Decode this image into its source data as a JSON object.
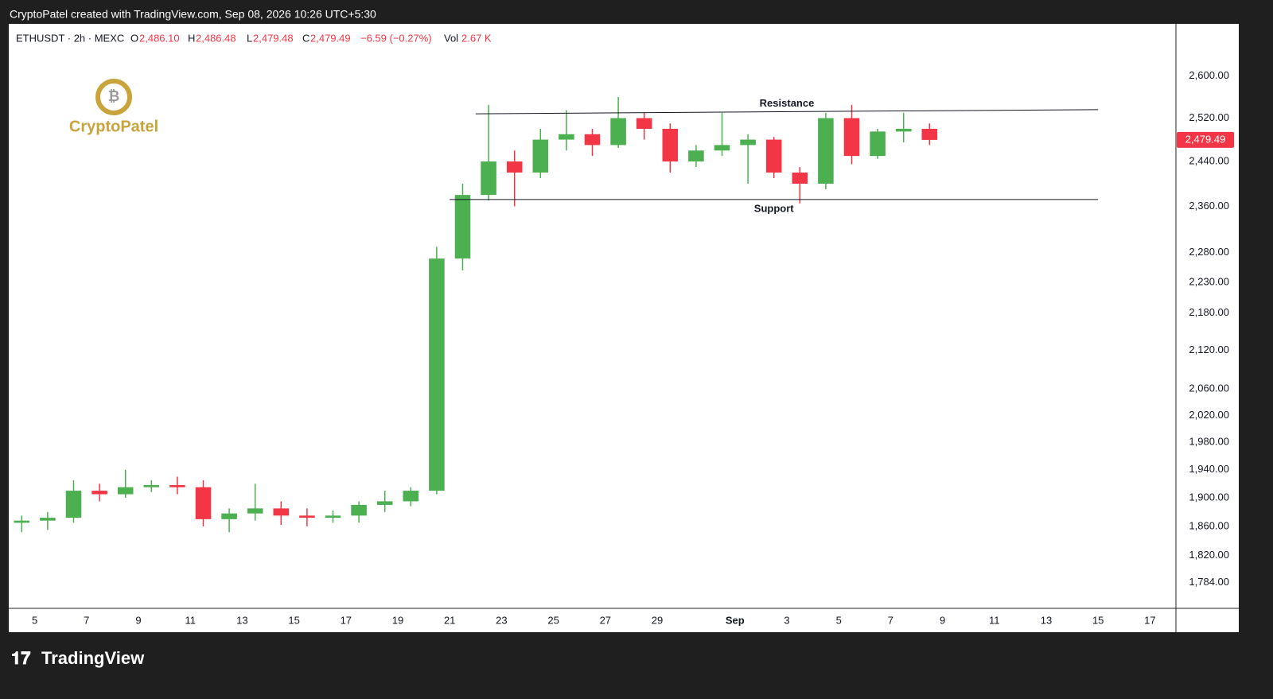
{
  "top_bar": "CryptoPatel created with TradingView.com, Sep 08, 2026 10:26 UTC+5:30",
  "logo_text": "CryptoPatel",
  "footer": "TradingView",
  "chart_data": {
    "type": "candlestick",
    "header": {
      "symbol": "ETHUSDT · 2h · MEXC",
      "o_label": "O",
      "open": "2,486.10",
      "h_label": "H",
      "high": "2,486.48",
      "l_label": "L",
      "low": "2,479.48",
      "c_label": "C",
      "close": "2,479.49",
      "change": "−6.59 (−0.27%)",
      "vol_label": "Vol",
      "volume": "2.67 K"
    },
    "x": [
      "2026-08-04",
      "2026-08-05",
      "2026-08-06",
      "2026-08-07",
      "2026-08-08",
      "2026-08-09",
      "2026-08-10",
      "2026-08-11",
      "2026-08-12",
      "2026-08-13",
      "2026-08-14",
      "2026-08-15",
      "2026-08-16",
      "2026-08-17",
      "2026-08-18",
      "2026-08-19",
      "2026-08-20",
      "2026-08-21",
      "2026-08-22",
      "2026-08-23",
      "2026-08-24",
      "2026-08-25",
      "2026-08-26",
      "2026-08-27",
      "2026-08-28",
      "2026-08-29",
      "2026-08-30",
      "2026-08-31",
      "2026-09-01",
      "2026-09-02",
      "2026-09-03",
      "2026-09-04",
      "2026-09-05",
      "2026-09-06",
      "2026-09-07",
      "2026-09-08"
    ],
    "open": [
      1865,
      1868,
      1872,
      1910,
      1905,
      1915,
      1918,
      1915,
      1870,
      1878,
      1885,
      1875,
      1872,
      1875,
      1890,
      1895,
      1910,
      2270,
      2380,
      2440,
      2420,
      2480,
      2490,
      2470,
      2520,
      2500,
      2440,
      2460,
      2470,
      2480,
      2420,
      2400,
      2520,
      2450,
      2495,
      2500
    ],
    "high": [
      1875,
      1880,
      1925,
      1920,
      1940,
      1925,
      1930,
      1925,
      1885,
      1920,
      1895,
      1885,
      1882,
      1895,
      1910,
      1915,
      2290,
      2400,
      2545,
      2460,
      2500,
      2535,
      2500,
      2560,
      2530,
      2510,
      2470,
      2530,
      2490,
      2485,
      2430,
      2530,
      2545,
      2500,
      2530,
      2510
    ],
    "low": [
      1852,
      1855,
      1865,
      1895,
      1900,
      1908,
      1905,
      1860,
      1852,
      1868,
      1862,
      1860,
      1865,
      1865,
      1880,
      1888,
      1905,
      2250,
      2370,
      2360,
      2410,
      2460,
      2450,
      2465,
      2480,
      2420,
      2430,
      2450,
      2400,
      2410,
      2365,
      2390,
      2435,
      2445,
      2475,
      2470
    ],
    "close": [
      1868,
      1872,
      1910,
      1905,
      1915,
      1918,
      1915,
      1870,
      1878,
      1885,
      1875,
      1872,
      1875,
      1890,
      1895,
      1910,
      2270,
      2380,
      2440,
      2420,
      2480,
      2490,
      2470,
      2520,
      2500,
      2440,
      2460,
      2470,
      2480,
      2420,
      2400,
      2520,
      2450,
      2495,
      2500,
      2479.49
    ],
    "up_color": "#4caf50",
    "down_color": "#f23645",
    "last_price_label": "2,479.49",
    "log_scale": true,
    "grid": false,
    "xlim": [
      "2026-08-04",
      "2026-09-18"
    ],
    "xticks": [
      {
        "value": "2026-08-05",
        "label": "5"
      },
      {
        "value": "2026-08-07",
        "label": "7"
      },
      {
        "value": "2026-08-09",
        "label": "9"
      },
      {
        "value": "2026-08-11",
        "label": "11"
      },
      {
        "value": "2026-08-13",
        "label": "13"
      },
      {
        "value": "2026-08-15",
        "label": "15"
      },
      {
        "value": "2026-08-17",
        "label": "17"
      },
      {
        "value": "2026-08-19",
        "label": "19"
      },
      {
        "value": "2026-08-21",
        "label": "21"
      },
      {
        "value": "2026-08-23",
        "label": "23"
      },
      {
        "value": "2026-08-25",
        "label": "25"
      },
      {
        "value": "2026-08-27",
        "label": "27"
      },
      {
        "value": "2026-08-29",
        "label": "29"
      },
      {
        "value": "2026-09-01",
        "label": "Sep"
      },
      {
        "value": "2026-09-03",
        "label": "3"
      },
      {
        "value": "2026-09-05",
        "label": "5"
      },
      {
        "value": "2026-09-07",
        "label": "7"
      },
      {
        "value": "2026-09-09",
        "label": "9"
      },
      {
        "value": "2026-09-11",
        "label": "11"
      },
      {
        "value": "2026-09-13",
        "label": "13"
      },
      {
        "value": "2026-09-15",
        "label": "15"
      },
      {
        "value": "2026-09-17",
        "label": "17"
      }
    ],
    "ylim": [
      1750,
      2703
    ],
    "yticks": [
      {
        "value": 1784,
        "label": "1,784.00"
      },
      {
        "value": 1820,
        "label": "1,820.00"
      },
      {
        "value": 1860,
        "label": "1,860.00"
      },
      {
        "value": 1900,
        "label": "1,900.00"
      },
      {
        "value": 1940,
        "label": "1,940.00"
      },
      {
        "value": 1980,
        "label": "1,980.00"
      },
      {
        "value": 2020,
        "label": "2,020.00"
      },
      {
        "value": 2060,
        "label": "2,060.00"
      },
      {
        "value": 2120,
        "label": "2,120.00"
      },
      {
        "value": 2180,
        "label": "2,180.00"
      },
      {
        "value": 2230,
        "label": "2,230.00"
      },
      {
        "value": 2280,
        "label": "2,280.00"
      },
      {
        "value": 2360,
        "label": "2,360.00"
      },
      {
        "value": 2440,
        "label": "2,440.00"
      },
      {
        "value": 2520,
        "label": "2,520.00"
      },
      {
        "value": 2600,
        "label": "2,600.00"
      }
    ],
    "trendlines": [
      {
        "label": "Resistance",
        "x": [
          "2026-08-22",
          "2026-09-15"
        ],
        "y": [
          2528,
          2536
        ]
      },
      {
        "label": "Support",
        "x": [
          "2026-08-21",
          "2026-09-15"
        ],
        "y": [
          2372,
          2372
        ]
      }
    ]
  }
}
